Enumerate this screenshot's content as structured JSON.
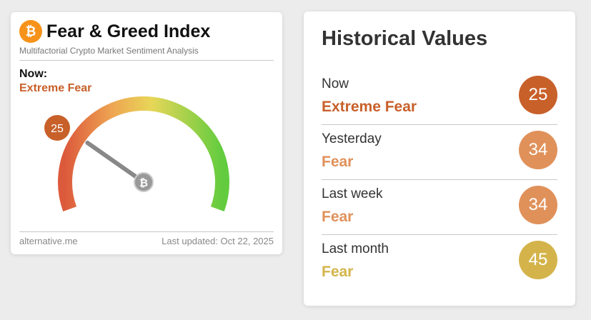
{
  "widget": {
    "title": "Fear & Greed Index",
    "subtitle": "Multifactorial Crypto Market Sentiment Analysis",
    "now_label": "Now:",
    "classification": "Extreme Fear",
    "classification_color": "#c8602a",
    "gauge": {
      "value": 25,
      "range": [
        0,
        100
      ]
    },
    "source": "alternative.me",
    "updated": "Last updated: Oct 22, 2025"
  },
  "historical": {
    "title": "Historical Values",
    "rows": [
      {
        "label": "Now",
        "classification": "Extreme Fear",
        "value": 25,
        "color": "#c8602a"
      },
      {
        "label": "Yesterday",
        "classification": "Fear",
        "value": 34,
        "color": "#e0915a"
      },
      {
        "label": "Last week",
        "classification": "Fear",
        "value": 34,
        "color": "#e0915a"
      },
      {
        "label": "Last month",
        "classification": "Fear",
        "value": 45,
        "color": "#d4b44a"
      }
    ]
  }
}
